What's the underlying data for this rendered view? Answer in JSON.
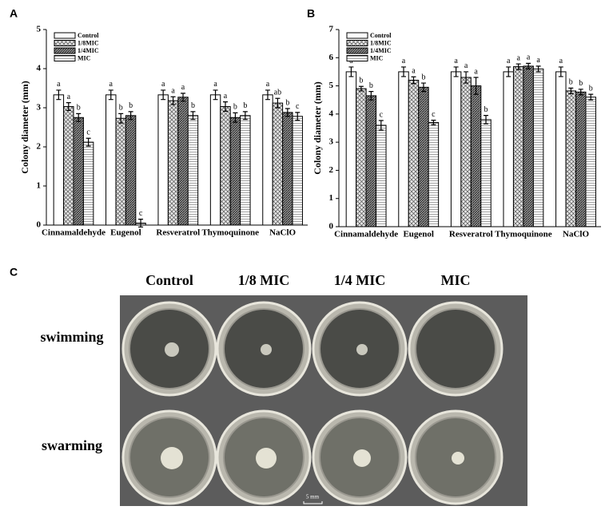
{
  "chart_data": [
    {
      "type": "bar",
      "panel_label": "A",
      "ylabel": "Colony diameter (mm)",
      "categories": [
        "Cinnamaldehyde",
        "Eugenol",
        "Resveratrol",
        "Thymoquinone",
        "NaClO"
      ],
      "series": [
        {
          "name": "Control",
          "color": "#ffffff",
          "pattern": "none",
          "values": [
            3.33,
            3.33,
            3.33,
            3.33,
            3.33
          ],
          "errors": [
            0.12,
            0.12,
            0.12,
            0.12,
            0.12
          ],
          "letters": [
            "a",
            "a",
            "a",
            "a",
            "a"
          ]
        },
        {
          "name": "1/8MIC",
          "color": "#d9d9d9",
          "pattern": "crosshatch",
          "values": [
            3.03,
            2.73,
            3.18,
            3.03,
            3.12
          ],
          "errors": [
            0.1,
            0.12,
            0.1,
            0.12,
            0.12
          ],
          "letters": [
            "a",
            "b",
            "a",
            "a",
            "ab"
          ]
        },
        {
          "name": "1/4MIC",
          "color": "#808080",
          "pattern": "diagonal",
          "values": [
            2.75,
            2.8,
            3.27,
            2.75,
            2.88
          ],
          "errors": [
            0.1,
            0.1,
            0.1,
            0.12,
            0.1
          ],
          "letters": [
            "b",
            "b",
            "a",
            "b",
            "b"
          ]
        },
        {
          "name": "MIC",
          "color": "#ffffff",
          "pattern": "horizontal",
          "values": [
            2.12,
            0.05,
            2.8,
            2.8,
            2.78
          ],
          "errors": [
            0.1,
            0.1,
            0.1,
            0.1,
            0.1
          ],
          "letters": [
            "c",
            "c",
            "b",
            "b",
            "c"
          ]
        }
      ],
      "ylim": [
        0,
        5
      ],
      "yticks": [
        0,
        1,
        2,
        3,
        4,
        5
      ],
      "legend": "upper left"
    },
    {
      "type": "bar",
      "panel_label": "B",
      "ylabel": "Colony diameter (mm)",
      "categories": [
        "Cinnamaldehyde",
        "Eugenol",
        "Resveratrol",
        "Thymoquinone",
        "NaClO"
      ],
      "series": [
        {
          "name": "Control",
          "color": "#ffffff",
          "pattern": "none",
          "values": [
            5.5,
            5.5,
            5.5,
            5.5,
            5.5
          ],
          "errors": [
            0.17,
            0.17,
            0.17,
            0.17,
            0.17
          ],
          "letters": [
            "a",
            "a",
            "a",
            "a",
            "a"
          ]
        },
        {
          "name": "1/8MIC",
          "color": "#d9d9d9",
          "pattern": "crosshatch",
          "values": [
            4.9,
            5.2,
            5.3,
            5.68,
            4.82
          ],
          "errors": [
            0.08,
            0.12,
            0.2,
            0.1,
            0.1
          ],
          "letters": [
            "b",
            "a",
            "a",
            "a",
            "b"
          ]
        },
        {
          "name": "1/4MIC",
          "color": "#808080",
          "pattern": "diagonal",
          "values": [
            4.65,
            4.95,
            5.0,
            5.7,
            4.78
          ],
          "errors": [
            0.15,
            0.15,
            0.3,
            0.1,
            0.1
          ],
          "letters": [
            "b",
            "b",
            "a",
            "a",
            "b"
          ]
        },
        {
          "name": "MIC",
          "color": "#ffffff",
          "pattern": "horizontal",
          "values": [
            3.6,
            3.7,
            3.8,
            5.6,
            4.6
          ],
          "errors": [
            0.17,
            0.08,
            0.15,
            0.1,
            0.1
          ],
          "letters": [
            "c",
            "c",
            "b",
            "a",
            "b"
          ]
        }
      ],
      "ylim": [
        0,
        7
      ],
      "yticks": [
        0,
        1,
        2,
        3,
        4,
        5,
        6,
        7
      ],
      "legend": "upper left"
    }
  ],
  "panel_c": {
    "label": "C",
    "columns": [
      "Control",
      "1/8 MIC",
      "1/4 MIC",
      "MIC"
    ],
    "rows": [
      "swimming",
      "swarming"
    ],
    "scale_bar": "5 mm"
  }
}
